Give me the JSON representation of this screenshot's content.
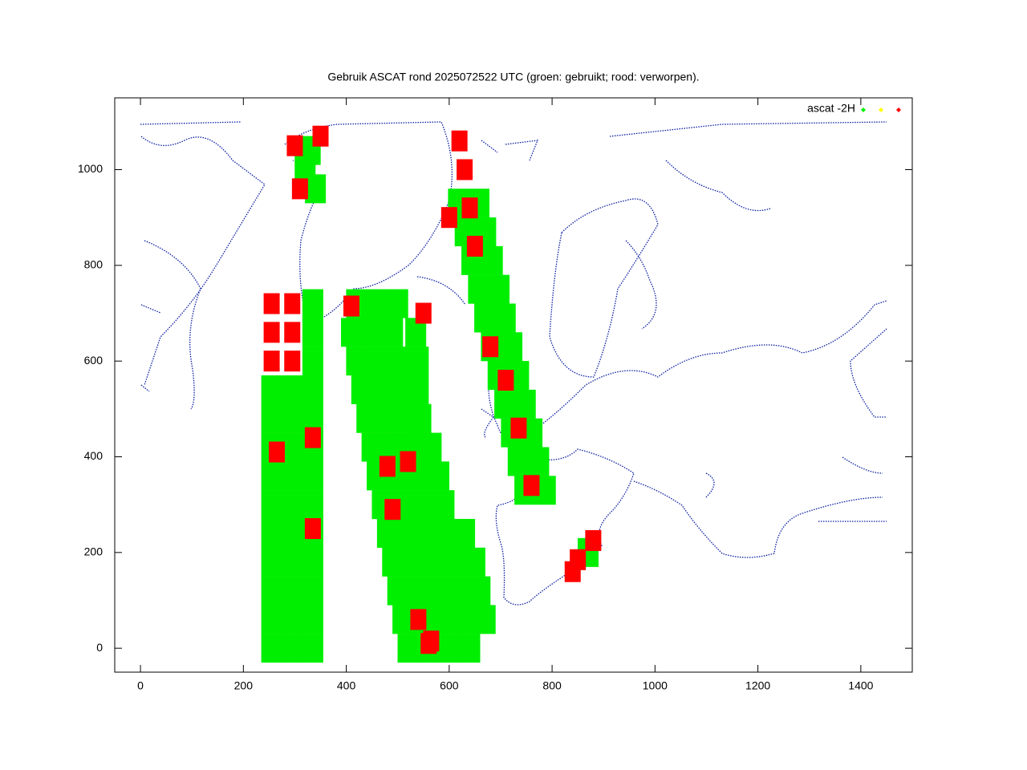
{
  "chart_data": {
    "type": "scatter",
    "title": "Gebruik ASCAT rond 2025072522 UTC (groen: gebruikt; rood: verworpen).",
    "xlim": [
      -50,
      1500
    ],
    "ylim": [
      -50,
      1150
    ],
    "xticks": [
      0,
      200,
      400,
      600,
      800,
      1000,
      1200,
      1400
    ],
    "yticks": [
      0,
      200,
      400,
      600,
      800,
      1000
    ],
    "legend": "top-right",
    "series": [
      {
        "name": "ascat -2H",
        "color": "#00ee00",
        "x": [
          255,
          295,
          335,
          255,
          295,
          335,
          255,
          295,
          335,
          255,
          295,
          335,
          255,
          295,
          335,
          255,
          295,
          335,
          255,
          295,
          335,
          255,
          295,
          335,
          255,
          295,
          335,
          255,
          295,
          335,
          335,
          335,
          335,
          520,
          560,
          600,
          640,
          510,
          550,
          590,
          630,
          670,
          500,
          540,
          580,
          620,
          660,
          490,
          530,
          570,
          610,
          650,
          480,
          520,
          560,
          600,
          630,
          470,
          510,
          550,
          590,
          460,
          500,
          540,
          580,
          450,
          490,
          530,
          565,
          440,
          480,
          520,
          545,
          430,
          470,
          510,
          540,
          420,
          460,
          500,
          540,
          410,
          450,
          490,
          535,
          420,
          460,
          500,
          747,
          787,
          734,
          774,
          721,
          761,
          708,
          748,
          695,
          735,
          682,
          722,
          669,
          709,
          657,
          697,
          644,
          684,
          631,
          671,
          618,
          658,
          320,
          340,
          330,
          870
        ],
        "values": [
          0,
          0,
          0,
          60,
          60,
          60,
          120,
          120,
          120,
          180,
          180,
          180,
          240,
          240,
          240,
          300,
          300,
          300,
          360,
          360,
          360,
          420,
          420,
          420,
          480,
          480,
          480,
          540,
          540,
          540,
          600,
          660,
          720,
          0,
          0,
          0,
          0,
          60,
          60,
          60,
          60,
          60,
          120,
          120,
          120,
          120,
          120,
          180,
          180,
          180,
          180,
          180,
          240,
          240,
          240,
          240,
          240,
          300,
          300,
          300,
          300,
          360,
          360,
          360,
          360,
          420,
          420,
          420,
          420,
          480,
          480,
          480,
          480,
          540,
          540,
          540,
          540,
          600,
          600,
          600,
          600,
          660,
          660,
          660,
          660,
          720,
          720,
          720,
          330,
          330,
          390,
          390,
          450,
          450,
          510,
          510,
          570,
          570,
          630,
          630,
          690,
          690,
          750,
          750,
          810,
          810,
          870,
          870,
          930,
          930,
          1000,
          960,
          1040,
          200
        ]
      },
      {
        "color": "#ffff00",
        "x": [],
        "values": []
      },
      {
        "color": "#ff0000",
        "x": [
          255,
          295,
          255,
          295,
          255,
          295,
          265,
          335,
          335,
          410,
          550,
          480,
          520,
          490,
          540,
          565,
          560,
          760,
          735,
          710,
          680,
          650,
          640,
          600,
          300,
          310,
          350,
          630,
          620,
          880,
          850,
          840
        ],
        "values": [
          600,
          600,
          660,
          660,
          720,
          720,
          410,
          440,
          250,
          715,
          700,
          380,
          390,
          290,
          60,
          15,
          10,
          340,
          460,
          560,
          630,
          840,
          920,
          900,
          1050,
          960,
          1070,
          1000,
          1060,
          225,
          185,
          160
        ]
      }
    ]
  }
}
